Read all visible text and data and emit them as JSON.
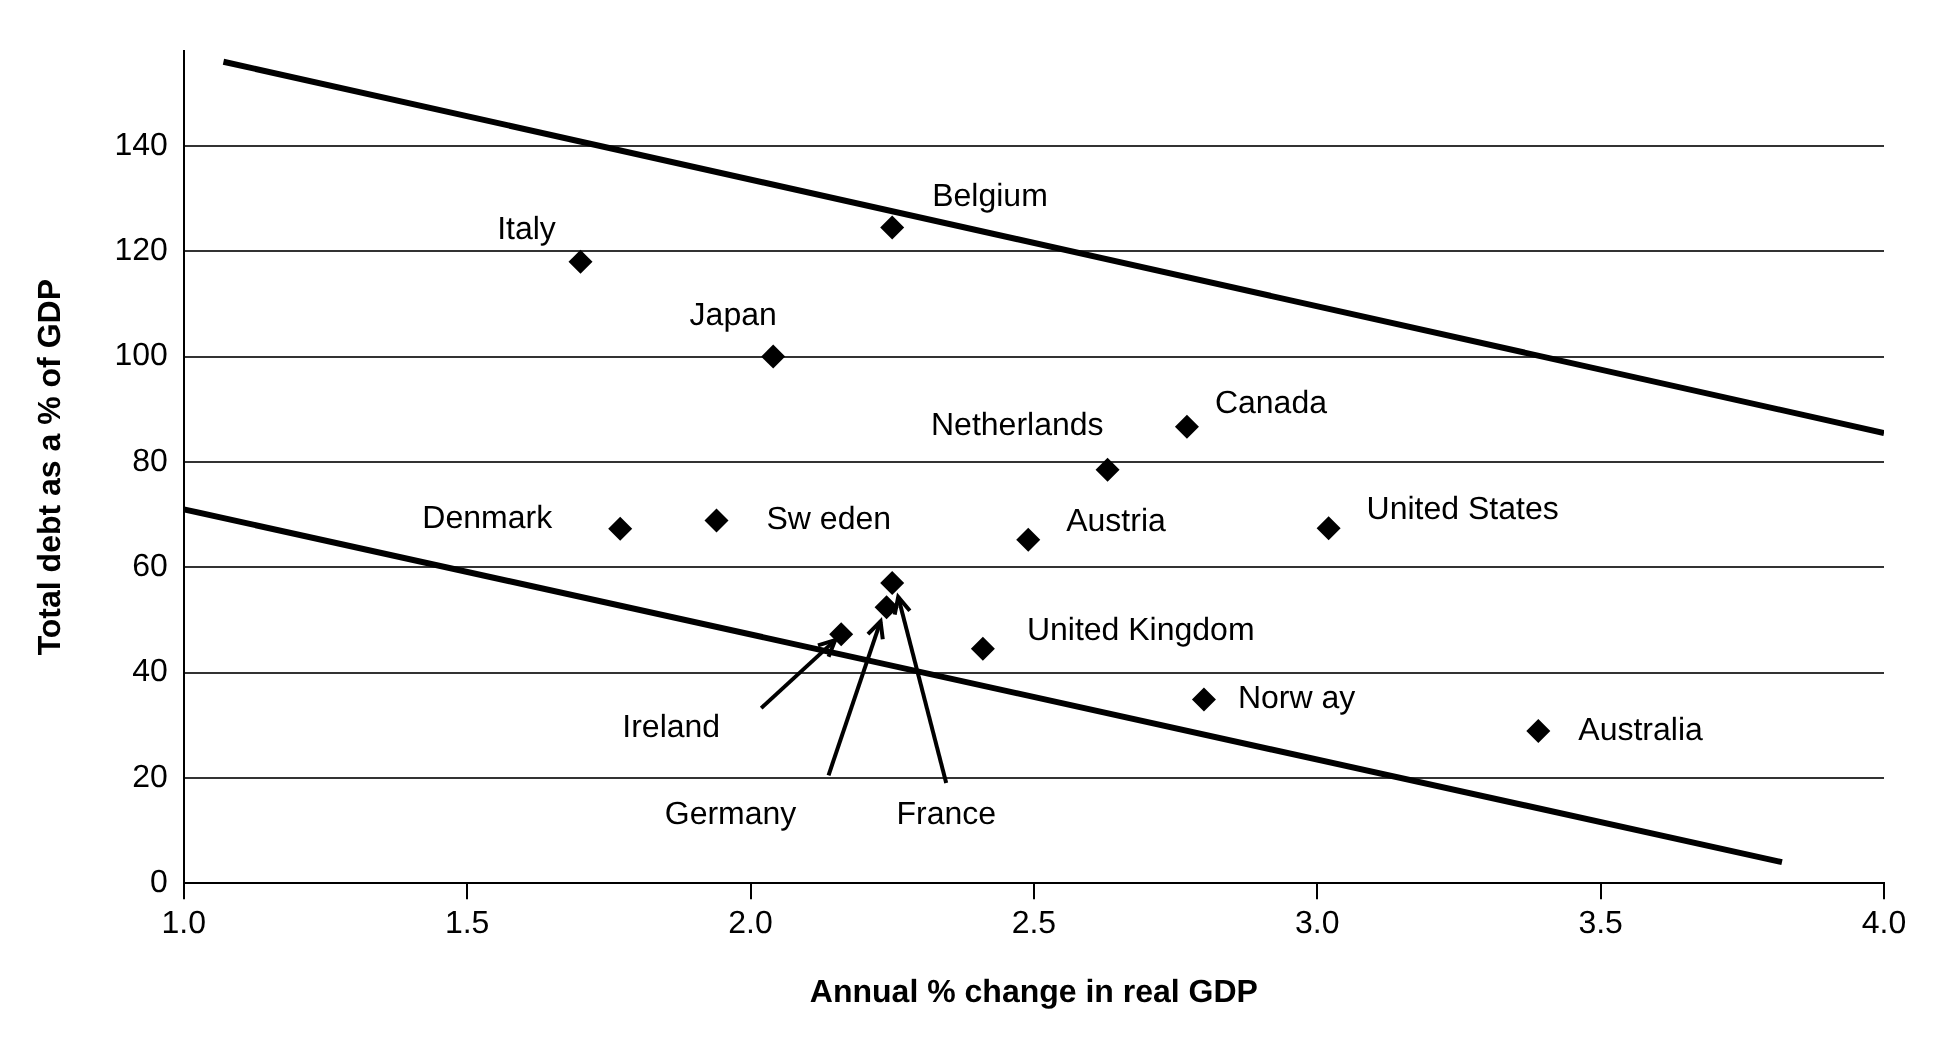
{
  "chart_data": {
    "type": "scatter",
    "xlabel": "Annual % change in real GDP",
    "ylabel": "Total debt as a % of GDP",
    "xlim": [
      1.0,
      4.0
    ],
    "xticks": [
      {
        "value": 1.0,
        "label": "1.0"
      },
      {
        "value": 1.5,
        "label": "1.5"
      },
      {
        "value": 2.0,
        "label": "2.0"
      },
      {
        "value": 2.5,
        "label": "2.5"
      },
      {
        "value": 3.0,
        "label": "3.0"
      },
      {
        "value": 3.5,
        "label": "3.5"
      },
      {
        "value": 4.0,
        "label": "4.0"
      }
    ],
    "ylim": [
      0,
      158
    ],
    "yticks": [
      0,
      20,
      40,
      60,
      80,
      100,
      120,
      140
    ],
    "grid": "y",
    "legend": false,
    "marker": "diamond",
    "series": [
      {
        "type": "scatter",
        "color": "#000000",
        "x": [
          1.7,
          2.25,
          2.04,
          2.63,
          2.77,
          1.77,
          1.94,
          2.49,
          3.02,
          2.41,
          2.8,
          3.39,
          2.16,
          2.24,
          2.25
        ],
        "values": [
          118,
          124.5,
          100,
          78.5,
          86.7,
          67.3,
          68.9,
          65.2,
          67.4,
          44.5,
          34.9,
          28.9,
          47.3,
          52.4,
          57.0
        ]
      },
      {
        "type": "line",
        "color": "#000000",
        "marker": "none",
        "line_style": "solid",
        "x": [
          1.07,
          4.0
        ],
        "values": [
          156,
          85.5
        ]
      },
      {
        "type": "line",
        "color": "#000000",
        "marker": "none",
        "line_style": "solid",
        "x": [
          1.0,
          3.82
        ],
        "values": [
          71.0,
          4.0
        ]
      }
    ],
    "annotations": [
      {
        "text": "Italy",
        "x": 1.7,
        "y": 118
      },
      {
        "text": "Belgium",
        "x": 2.25,
        "y": 124.5
      },
      {
        "text": "Japan",
        "x": 2.04,
        "y": 100
      },
      {
        "text": "Netherlands",
        "x": 2.63,
        "y": 78.5
      },
      {
        "text": "Canada",
        "x": 2.77,
        "y": 86.7
      },
      {
        "text": "Denmark",
        "x": 1.77,
        "y": 67.3
      },
      {
        "text": "Sw eden",
        "x": 1.94,
        "y": 68.9
      },
      {
        "text": "Austria",
        "x": 2.49,
        "y": 65.2
      },
      {
        "text": "United States",
        "x": 3.02,
        "y": 67.4
      },
      {
        "text": "United Kingdom",
        "x": 2.41,
        "y": 44.5
      },
      {
        "text": "Norw ay",
        "x": 2.8,
        "y": 34.9
      },
      {
        "text": "Australia",
        "x": 3.39,
        "y": 28.9
      },
      {
        "text": "Ireland",
        "x": 2.16,
        "y": 47.3
      },
      {
        "text": "Germany",
        "x": 2.24,
        "y": 52.4
      },
      {
        "text": "France",
        "x": 2.25,
        "y": 57.0
      }
    ]
  }
}
